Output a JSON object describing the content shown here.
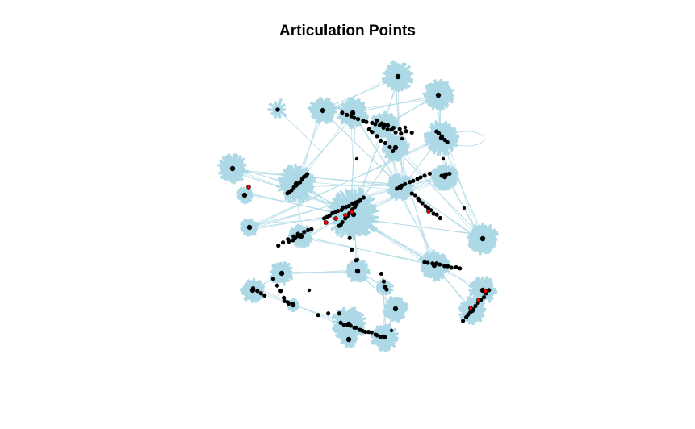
{
  "title": "Articulation Points",
  "colors": {
    "background": "#ffffff",
    "edge": "#add8e6",
    "vertex": "#000000",
    "articulation_point": "#ff0000"
  }
}
